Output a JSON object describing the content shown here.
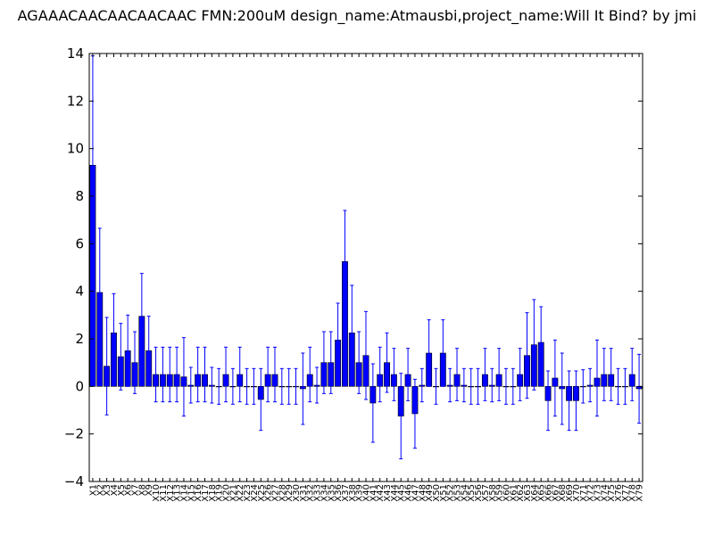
{
  "chart_data": {
    "type": "bar",
    "title": "AGAAACAACAACAACAAC  FMN:200uM  design_name:Atmausbi,project_name:Will It Bind? by jmi",
    "xlabel": "",
    "ylabel": "",
    "ylim": [
      -4,
      14
    ],
    "yticks": [
      "−4",
      "−2",
      "0",
      "2",
      "4",
      "6",
      "8",
      "10",
      "12",
      "14"
    ],
    "yticks_values": [
      -4,
      -2,
      0,
      2,
      4,
      6,
      8,
      10,
      12,
      14
    ],
    "grid": false,
    "bar_color": "#0000ff",
    "error_color": "#0000ff",
    "categories": [
      "X1",
      "X2",
      "X3",
      "X4",
      "X5",
      "X6",
      "X7",
      "X8",
      "X9",
      "X10",
      "X11",
      "X12",
      "X13",
      "X14",
      "X15",
      "X16",
      "X17",
      "X18",
      "X19",
      "X20",
      "X21",
      "X22",
      "X23",
      "X24",
      "X25",
      "X26",
      "X27",
      "X28",
      "X29",
      "X30",
      "X31",
      "X32",
      "X33",
      "X34",
      "X35",
      "X36",
      "X37",
      "X38",
      "X39",
      "X40",
      "X41",
      "X42",
      "X43",
      "X44",
      "X45",
      "X46",
      "X47",
      "X48",
      "X49",
      "X50",
      "X51",
      "X52",
      "X53",
      "X54",
      "X55",
      "X56",
      "X57",
      "X58",
      "X59",
      "X60",
      "X61",
      "X62",
      "X63",
      "X64",
      "X65",
      "X66",
      "X67",
      "X68",
      "X69",
      "X70",
      "X71",
      "X72",
      "X73",
      "X74",
      "X75",
      "X76",
      "X77",
      "X78",
      "X79"
    ],
    "values": [
      9.3,
      3.95,
      0.85,
      2.25,
      1.25,
      1.5,
      1.0,
      2.95,
      1.5,
      0.5,
      0.5,
      0.5,
      0.5,
      0.4,
      0.05,
      0.5,
      0.5,
      0.05,
      0.0,
      0.5,
      0.0,
      0.5,
      0.0,
      0.0,
      -0.55,
      0.5,
      0.5,
      0.0,
      0.0,
      0.0,
      -0.1,
      0.5,
      0.05,
      1.0,
      1.0,
      1.95,
      5.25,
      2.25,
      1.0,
      1.3,
      -0.7,
      0.5,
      1.0,
      0.5,
      -1.25,
      0.5,
      -1.15,
      0.05,
      1.4,
      0.0,
      1.4,
      0.05,
      0.5,
      0.05,
      0.0,
      0.0,
      0.5,
      0.05,
      0.5,
      0.0,
      0.0,
      0.5,
      1.3,
      1.75,
      1.85,
      -0.6,
      0.35,
      -0.1,
      -0.6,
      -0.6,
      0.0,
      0.05,
      0.35,
      0.5,
      0.5,
      0.0,
      0.0,
      0.5,
      -0.1
    ],
    "errors": [
      4.6,
      2.7,
      2.05,
      1.65,
      1.4,
      1.5,
      1.3,
      1.8,
      1.45,
      1.15,
      1.15,
      1.15,
      1.15,
      1.65,
      0.75,
      1.15,
      1.15,
      0.75,
      0.75,
      1.15,
      0.75,
      1.15,
      0.75,
      0.75,
      1.3,
      1.15,
      1.15,
      0.75,
      0.75,
      0.75,
      1.5,
      1.15,
      0.75,
      1.3,
      1.3,
      1.55,
      2.15,
      2.0,
      1.3,
      1.85,
      1.65,
      1.15,
      1.25,
      1.1,
      1.8,
      1.1,
      1.45,
      0.7,
      1.4,
      0.75,
      1.4,
      0.7,
      1.1,
      0.7,
      0.75,
      0.75,
      1.1,
      0.7,
      1.1,
      0.75,
      0.75,
      1.1,
      1.8,
      1.9,
      1.5,
      1.25,
      1.6,
      1.5,
      1.25,
      1.25,
      0.7,
      0.7,
      1.6,
      1.1,
      1.1,
      0.75,
      0.75,
      1.1,
      1.45
    ]
  }
}
